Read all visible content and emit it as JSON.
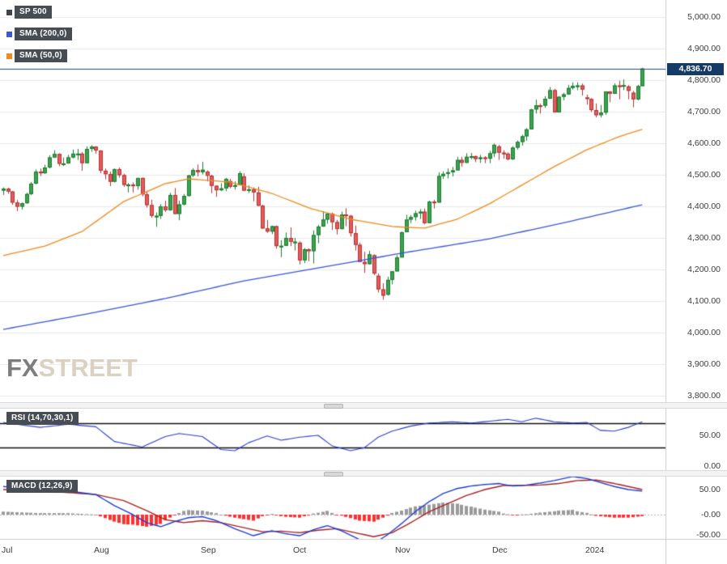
{
  "chart_data": {
    "type": "candlestick",
    "title": "SP 500",
    "legend": [
      {
        "label": "SP 500",
        "color": "#3d444b"
      },
      {
        "label": "SMA (200,0)",
        "color": "#3a57d6"
      },
      {
        "label": "SMA (50,0)",
        "color": "#ef8a1c"
      }
    ],
    "last_price": {
      "label": "4,836.70",
      "value": 4836.7
    },
    "y_axis": [
      {
        "label": "5,000.00",
        "value": 5000
      },
      {
        "label": "4,900.00",
        "value": 4900
      },
      {
        "label": "4,800.00",
        "value": 4800
      },
      {
        "label": "4,700.00",
        "value": 4700
      },
      {
        "label": "4,600.00",
        "value": 4600
      },
      {
        "label": "4,500.00",
        "value": 4500
      },
      {
        "label": "4,400.00",
        "value": 4400
      },
      {
        "label": "4,300.00",
        "value": 4300
      },
      {
        "label": "4,200.00",
        "value": 4200
      },
      {
        "label": "4,100.00",
        "value": 4100
      },
      {
        "label": "4,000.00",
        "value": 4000
      },
      {
        "label": "3,900.00",
        "value": 3900
      },
      {
        "label": "3,800.00",
        "value": 3800
      }
    ],
    "x_ticks": [
      {
        "label": "Jul",
        "index": 0
      },
      {
        "label": "Aug",
        "index": 20
      },
      {
        "label": "Sep",
        "index": 43
      },
      {
        "label": "Oct",
        "index": 63
      },
      {
        "label": "Nov",
        "index": 85
      },
      {
        "label": "Dec",
        "index": 106
      },
      {
        "label": "2024",
        "index": 126
      }
    ],
    "candles": [
      [
        4450,
        4460,
        4436,
        4456
      ],
      [
        4456,
        4459,
        4440,
        4447
      ],
      [
        4447,
        4449,
        4405,
        4412
      ],
      [
        4412,
        4420,
        4385,
        4399
      ],
      [
        4399,
        4412,
        4390,
        4410
      ],
      [
        4410,
        4443,
        4408,
        4439
      ],
      [
        4439,
        4477,
        4436,
        4472
      ],
      [
        4472,
        4517,
        4470,
        4510
      ],
      [
        4510,
        4520,
        4496,
        4505
      ],
      [
        4505,
        4532,
        4503,
        4523
      ],
      [
        4523,
        4562,
        4520,
        4555
      ],
      [
        4555,
        4578,
        4553,
        4566
      ],
      [
        4566,
        4568,
        4527,
        4535
      ],
      [
        4535,
        4555,
        4528,
        4536
      ],
      [
        4536,
        4563,
        4535,
        4555
      ],
      [
        4555,
        4580,
        4552,
        4567
      ],
      [
        4567,
        4582,
        4547,
        4567
      ],
      [
        4567,
        4572,
        4513,
        4537
      ],
      [
        4537,
        4590,
        4536,
        4582
      ],
      [
        4582,
        4594,
        4573,
        4589
      ],
      [
        4589,
        4591,
        4567,
        4577
      ],
      [
        4577,
        4578,
        4505,
        4513
      ],
      [
        4513,
        4520,
        4486,
        4502
      ],
      [
        4502,
        4510,
        4464,
        4478
      ],
      [
        4478,
        4520,
        4476,
        4518
      ],
      [
        4518,
        4523,
        4491,
        4499
      ],
      [
        4499,
        4503,
        4462,
        4468
      ],
      [
        4468,
        4474,
        4444,
        4469
      ],
      [
        4469,
        4476,
        4444,
        4464
      ],
      [
        4464,
        4490,
        4453,
        4490
      ],
      [
        4490,
        4491,
        4432,
        4438
      ],
      [
        4438,
        4449,
        4396,
        4404
      ],
      [
        4404,
        4421,
        4364,
        4370
      ],
      [
        4370,
        4381,
        4335,
        4370
      ],
      [
        4370,
        4407,
        4360,
        4400
      ],
      [
        4400,
        4418,
        4382,
        4388
      ],
      [
        4388,
        4443,
        4386,
        4436
      ],
      [
        4436,
        4458,
        4375,
        4376
      ],
      [
        4376,
        4418,
        4356,
        4406
      ],
      [
        4406,
        4439,
        4403,
        4433
      ],
      [
        4433,
        4500,
        4431,
        4498
      ],
      [
        4498,
        4521,
        4493,
        4515
      ],
      [
        4515,
        4532,
        4495,
        4508
      ],
      [
        4508,
        4541,
        4501,
        4516
      ],
      [
        4510,
        4514,
        4479,
        4497
      ],
      [
        4497,
        4500,
        4442,
        4465
      ],
      [
        4465,
        4467,
        4430,
        4451
      ],
      [
        4451,
        4473,
        4448,
        4457
      ],
      [
        4457,
        4490,
        4448,
        4487
      ],
      [
        4480,
        4487,
        4457,
        4462
      ],
      [
        4462,
        4479,
        4453,
        4467
      ],
      [
        4467,
        4511,
        4466,
        4505
      ],
      [
        4495,
        4505,
        4448,
        4450
      ],
      [
        4450,
        4466,
        4442,
        4454
      ],
      [
        4454,
        4460,
        4416,
        4444
      ],
      [
        4444,
        4462,
        4401,
        4402
      ],
      [
        4402,
        4405,
        4329,
        4330
      ],
      [
        4330,
        4357,
        4316,
        4320
      ],
      [
        4320,
        4339,
        4312,
        4337
      ],
      [
        4337,
        4339,
        4266,
        4274
      ],
      [
        4274,
        4293,
        4239,
        4275
      ],
      [
        4275,
        4317,
        4274,
        4300
      ],
      [
        4300,
        4333,
        4274,
        4288
      ],
      [
        4288,
        4300,
        4260,
        4288
      ],
      [
        4285,
        4289,
        4216,
        4229
      ],
      [
        4229,
        4268,
        4220,
        4264
      ],
      [
        4264,
        4267,
        4226,
        4258
      ],
      [
        4258,
        4324,
        4219,
        4309
      ],
      [
        4309,
        4341,
        4283,
        4336
      ],
      [
        4336,
        4385,
        4335,
        4358
      ],
      [
        4358,
        4378,
        4345,
        4377
      ],
      [
        4377,
        4380,
        4325,
        4350
      ],
      [
        4350,
        4357,
        4311,
        4328
      ],
      [
        4328,
        4383,
        4327,
        4374
      ],
      [
        4374,
        4394,
        4337,
        4373
      ],
      [
        4370,
        4373,
        4304,
        4315
      ],
      [
        4315,
        4339,
        4260,
        4278
      ],
      [
        4278,
        4285,
        4224,
        4224
      ],
      [
        4224,
        4256,
        4189,
        4217
      ],
      [
        4217,
        4259,
        4215,
        4248
      ],
      [
        4245,
        4248,
        4182,
        4187
      ],
      [
        4180,
        4187,
        4127,
        4137
      ],
      [
        4137,
        4156,
        4104,
        4117
      ],
      [
        4120,
        4177,
        4117,
        4167
      ],
      [
        4167,
        4195,
        4153,
        4194
      ],
      [
        4194,
        4245,
        4194,
        4238
      ],
      [
        4238,
        4320,
        4238,
        4318
      ],
      [
        4318,
        4373,
        4318,
        4358
      ],
      [
        4358,
        4372,
        4347,
        4366
      ],
      [
        4366,
        4386,
        4355,
        4378
      ],
      [
        4378,
        4391,
        4360,
        4383
      ],
      [
        4383,
        4393,
        4343,
        4347
      ],
      [
        4347,
        4418,
        4347,
        4415
      ],
      [
        4415,
        4421,
        4393,
        4412
      ],
      [
        4412,
        4508,
        4412,
        4496
      ],
      [
        4496,
        4511,
        4487,
        4503
      ],
      [
        4503,
        4520,
        4488,
        4508
      ],
      [
        4508,
        4525,
        4495,
        4514
      ],
      [
        4514,
        4557,
        4514,
        4547
      ],
      [
        4547,
        4557,
        4526,
        4538
      ],
      [
        4538,
        4568,
        4537,
        4557
      ],
      [
        4557,
        4569,
        4549,
        4559
      ],
      [
        4559,
        4561,
        4540,
        4550
      ],
      [
        4550,
        4563,
        4538,
        4555
      ],
      [
        4555,
        4559,
        4537,
        4551
      ],
      [
        4551,
        4576,
        4537,
        4568
      ],
      [
        4568,
        4599,
        4556,
        4595
      ],
      [
        4590,
        4595,
        4547,
        4570
      ],
      [
        4570,
        4578,
        4551,
        4567
      ],
      [
        4567,
        4571,
        4546,
        4549
      ],
      [
        4549,
        4590,
        4547,
        4586
      ],
      [
        4586,
        4609,
        4580,
        4604
      ],
      [
        4604,
        4627,
        4593,
        4622
      ],
      [
        4622,
        4648,
        4608,
        4644
      ],
      [
        4644,
        4709,
        4644,
        4707
      ],
      [
        4707,
        4738,
        4694,
        4720
      ],
      [
        4720,
        4725,
        4694,
        4719
      ],
      [
        4719,
        4749,
        4712,
        4741
      ],
      [
        4741,
        4778,
        4740,
        4768
      ],
      [
        4768,
        4772,
        4697,
        4698
      ],
      [
        4698,
        4749,
        4697,
        4747
      ],
      [
        4747,
        4760,
        4736,
        4755
      ],
      [
        4755,
        4785,
        4753,
        4775
      ],
      [
        4775,
        4793,
        4770,
        4782
      ],
      [
        4782,
        4793,
        4768,
        4783
      ],
      [
        4783,
        4789,
        4751,
        4770
      ],
      [
        4745,
        4754,
        4722,
        4743
      ],
      [
        4740,
        4743,
        4699,
        4705
      ],
      [
        4705,
        4726,
        4682,
        4689
      ],
      [
        4689,
        4721,
        4682,
        4697
      ],
      [
        4697,
        4764,
        4690,
        4764
      ],
      [
        4764,
        4765,
        4730,
        4757
      ],
      [
        4757,
        4790,
        4756,
        4783
      ],
      [
        4783,
        4798,
        4739,
        4780
      ],
      [
        4780,
        4802,
        4768,
        4784
      ],
      [
        4780,
        4784,
        4739,
        4766
      ],
      [
        4760,
        4766,
        4714,
        4739
      ],
      [
        4739,
        4785,
        4736,
        4781
      ],
      [
        4781,
        4839,
        4781,
        4836.7
      ]
    ],
    "sma50": {
      "name": "SMA (50,0)",
      "color": "#ef8a1c",
      "points": [
        [
          0,
          4244
        ],
        [
          9,
          4274
        ],
        [
          17,
          4320
        ],
        [
          26,
          4415
        ],
        [
          35,
          4472
        ],
        [
          40,
          4487
        ],
        [
          49,
          4477
        ],
        [
          58,
          4441
        ],
        [
          66,
          4395
        ],
        [
          75,
          4359
        ],
        [
          84,
          4336
        ],
        [
          91,
          4331
        ],
        [
          98,
          4359
        ],
        [
          105,
          4408
        ],
        [
          112,
          4467
        ],
        [
          119,
          4526
        ],
        [
          126,
          4579
        ],
        [
          133,
          4621
        ],
        [
          138,
          4644
        ]
      ]
    },
    "sma200": {
      "name": "SMA (200,0)",
      "color": "#3a57d6",
      "points": [
        [
          0,
          4010
        ],
        [
          17,
          4056
        ],
        [
          35,
          4108
        ],
        [
          52,
          4164
        ],
        [
          70,
          4210
        ],
        [
          87,
          4254
        ],
        [
          105,
          4297
        ],
        [
          122,
          4351
        ],
        [
          138,
          4405
        ]
      ]
    },
    "rsi": {
      "label": "RSI (14,70,30,1)",
      "color": "#2d3fd0",
      "levels": [
        70,
        30
      ],
      "ticks": [
        {
          "label": "50.00",
          "value": 50
        },
        {
          "label": "0.00",
          "value": 0
        }
      ],
      "points": [
        [
          0,
          71
        ],
        [
          8,
          63
        ],
        [
          14,
          68
        ],
        [
          20,
          64
        ],
        [
          24,
          40
        ],
        [
          30,
          31
        ],
        [
          35,
          48
        ],
        [
          38,
          53
        ],
        [
          43,
          48
        ],
        [
          47,
          27
        ],
        [
          50,
          25
        ],
        [
          53,
          38
        ],
        [
          57,
          49
        ],
        [
          60,
          42
        ],
        [
          64,
          47
        ],
        [
          68,
          50
        ],
        [
          71,
          33
        ],
        [
          75,
          25
        ],
        [
          78,
          30
        ],
        [
          81,
          47
        ],
        [
          84,
          57
        ],
        [
          88,
          65
        ],
        [
          92,
          70
        ],
        [
          97,
          72
        ],
        [
          101,
          70
        ],
        [
          105,
          73
        ],
        [
          109,
          76
        ],
        [
          112,
          72
        ],
        [
          115,
          78
        ],
        [
          119,
          72
        ],
        [
          123,
          70
        ],
        [
          126,
          71
        ],
        [
          129,
          58
        ],
        [
          132,
          57
        ],
        [
          135,
          63
        ],
        [
          138,
          72
        ]
      ]
    },
    "macd": {
      "label": "MACD (12,26,9)",
      "line_color": "#1f3fd4",
      "signal_color": "#aa2222",
      "hist_pos_color": "#9a9a9a",
      "hist_neg_color": "#ff2f2f",
      "ticks": [
        {
          "label": "50.00",
          "value": 50
        },
        {
          "label": "-0.00",
          "value": 0
        },
        {
          "label": "-50.00",
          "value": -50
        }
      ],
      "macd_points": [
        [
          0,
          56
        ],
        [
          8,
          50
        ],
        [
          14,
          47
        ],
        [
          20,
          40
        ],
        [
          24,
          18
        ],
        [
          28,
          0
        ],
        [
          31,
          -16
        ],
        [
          34,
          -24
        ],
        [
          37,
          -14
        ],
        [
          40,
          -6
        ],
        [
          43,
          -4
        ],
        [
          46,
          -12
        ],
        [
          50,
          -28
        ],
        [
          54,
          -42
        ],
        [
          58,
          -32
        ],
        [
          61,
          -38
        ],
        [
          64,
          -42
        ],
        [
          67,
          -30
        ],
        [
          70,
          -22
        ],
        [
          73,
          -32
        ],
        [
          77,
          -50
        ],
        [
          80,
          -58
        ],
        [
          83,
          -40
        ],
        [
          86,
          -18
        ],
        [
          89,
          6
        ],
        [
          92,
          26
        ],
        [
          95,
          42
        ],
        [
          98,
          52
        ],
        [
          101,
          57
        ],
        [
          104,
          60
        ],
        [
          107,
          62
        ],
        [
          110,
          57
        ],
        [
          113,
          59
        ],
        [
          116,
          63
        ],
        [
          119,
          68
        ],
        [
          123,
          76
        ],
        [
          126,
          72
        ],
        [
          129,
          64
        ],
        [
          132,
          56
        ],
        [
          135,
          50
        ],
        [
          138,
          47
        ]
      ],
      "signal_points": [
        [
          0,
          50
        ],
        [
          8,
          47
        ],
        [
          14,
          44
        ],
        [
          20,
          40
        ],
        [
          26,
          28
        ],
        [
          31,
          8
        ],
        [
          35,
          -10
        ],
        [
          39,
          -16
        ],
        [
          43,
          -12
        ],
        [
          47,
          -16
        ],
        [
          52,
          -26
        ],
        [
          56,
          -34
        ],
        [
          60,
          -33
        ],
        [
          64,
          -36
        ],
        [
          68,
          -31
        ],
        [
          72,
          -28
        ],
        [
          76,
          -36
        ],
        [
          80,
          -44
        ],
        [
          84,
          -36
        ],
        [
          88,
          -16
        ],
        [
          92,
          6
        ],
        [
          96,
          22
        ],
        [
          100,
          38
        ],
        [
          104,
          50
        ],
        [
          108,
          58
        ],
        [
          112,
          58
        ],
        [
          116,
          59
        ],
        [
          120,
          62
        ],
        [
          124,
          68
        ],
        [
          128,
          69
        ],
        [
          132,
          62
        ],
        [
          136,
          54
        ],
        [
          138,
          50
        ]
      ]
    },
    "colors": {
      "up_fill": "#3ba24f",
      "up_border": "#1e7a32",
      "down_fill": "#e65a5a",
      "down_border": "#b23434",
      "grid": "#e9e9e9",
      "axis_line": "#cccccc",
      "axis_text": "#3c3c3c",
      "price_line": "#2a4d71",
      "badge_bg": "#163a66",
      "rsi_level": "#111111",
      "zero_line": "#b5b5b5"
    }
  },
  "watermark": {
    "fx": "FX",
    "street": "STREET"
  }
}
